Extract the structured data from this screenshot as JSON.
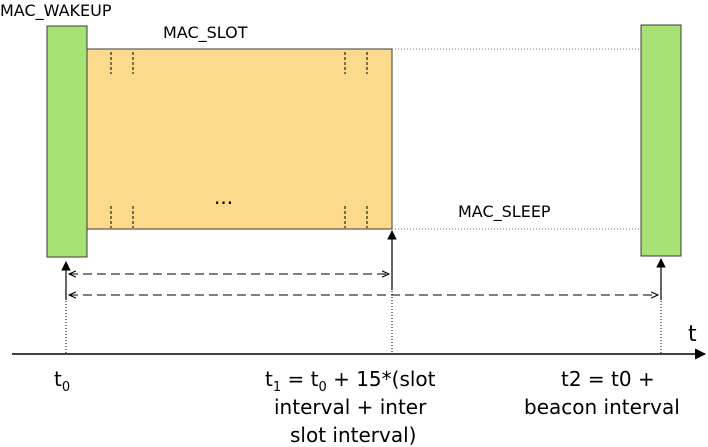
{
  "labels": {
    "wakeup": "MAC_WAKEUP",
    "slot": "MAC_SLOT",
    "sleep": "MAC_SLEEP",
    "ellipsis": "...",
    "axis": "t",
    "t0_main": "t",
    "t0_sub": "0",
    "t1_main": "t",
    "t1_sub": "1",
    "t1_mid": " = t",
    "t1_sub2": "0",
    "t1_rest": " + 15*(slot",
    "t1_line2": "interval + inter",
    "t1_line3": "slot interval)",
    "t2_line1": "t2 = t0 +",
    "t2_line2": "beacon interval"
  },
  "colors": {
    "wakeup_fill": "#a6e374",
    "slot_fill": "#fdd98b",
    "stroke": "#3a3a3a"
  }
}
